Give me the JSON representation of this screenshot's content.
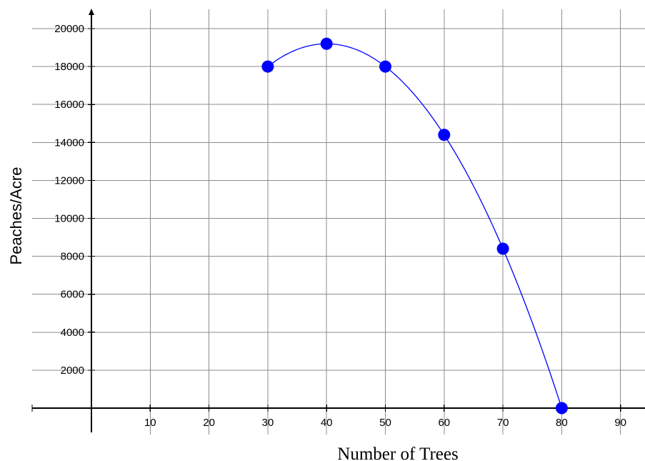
{
  "chart_data": {
    "type": "scatter",
    "title": "",
    "xlabel": "Number  of Trees",
    "ylabel": "Peaches/Acre",
    "xlim": [
      -10,
      95
    ],
    "ylim": [
      -1200,
      20800
    ],
    "x_ticks": [
      10,
      20,
      30,
      40,
      50,
      60,
      70,
      80,
      90
    ],
    "y_ticks": [
      2000,
      4000,
      6000,
      8000,
      10000,
      12000,
      14000,
      16000,
      18000,
      20000
    ],
    "grid": true,
    "series": [
      {
        "type": "scatter",
        "x": [
          30,
          40,
          50,
          60,
          70,
          80
        ],
        "y": [
          18000,
          19200,
          18000,
          14400,
          8400,
          0
        ]
      },
      {
        "type": "line",
        "curve": "fitted quadratic through the points",
        "x": [
          30,
          80
        ],
        "coefficients": {
          "a": -12,
          "b": 960,
          "c": 0
        }
      }
    ],
    "colors": {
      "points": "#0000ff",
      "curve": "#0000ff",
      "grid": "#8c8c8c",
      "axes": "#000000"
    }
  }
}
